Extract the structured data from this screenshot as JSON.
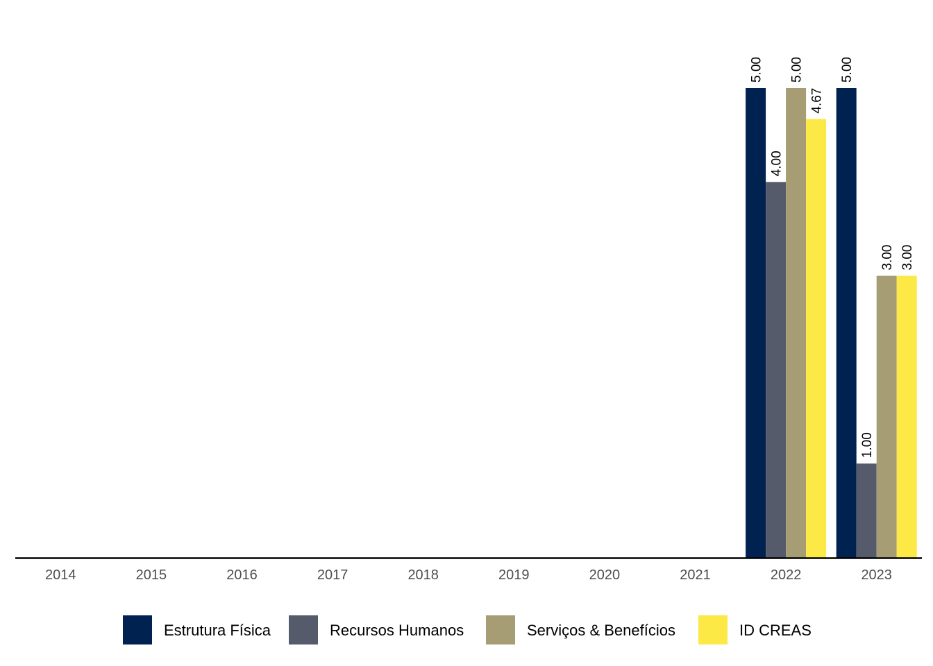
{
  "chart_data": {
    "type": "bar",
    "categories": [
      "2014",
      "2015",
      "2016",
      "2017",
      "2018",
      "2019",
      "2020",
      "2021",
      "2022",
      "2023"
    ],
    "series": [
      {
        "name": "Estrutura Física",
        "color": "#002251",
        "values": [
          null,
          null,
          null,
          null,
          null,
          null,
          null,
          null,
          5.0,
          5.0
        ]
      },
      {
        "name": "Recursos Humanos",
        "color": "#565b6b",
        "values": [
          null,
          null,
          null,
          null,
          null,
          null,
          null,
          null,
          4.0,
          1.0
        ]
      },
      {
        "name": "Serviços & Benefícios",
        "color": "#a69d74",
        "values": [
          null,
          null,
          null,
          null,
          null,
          null,
          null,
          null,
          5.0,
          3.0
        ]
      },
      {
        "name": "ID CREAS",
        "color": "#fde945",
        "values": [
          null,
          null,
          null,
          null,
          null,
          null,
          null,
          null,
          4.67,
          3.0
        ]
      }
    ],
    "ylim": [
      0,
      5.3
    ],
    "label_format": "fixed-2",
    "legend_position": "bottom",
    "grid": false,
    "title": "",
    "xlabel": "",
    "ylabel": ""
  }
}
